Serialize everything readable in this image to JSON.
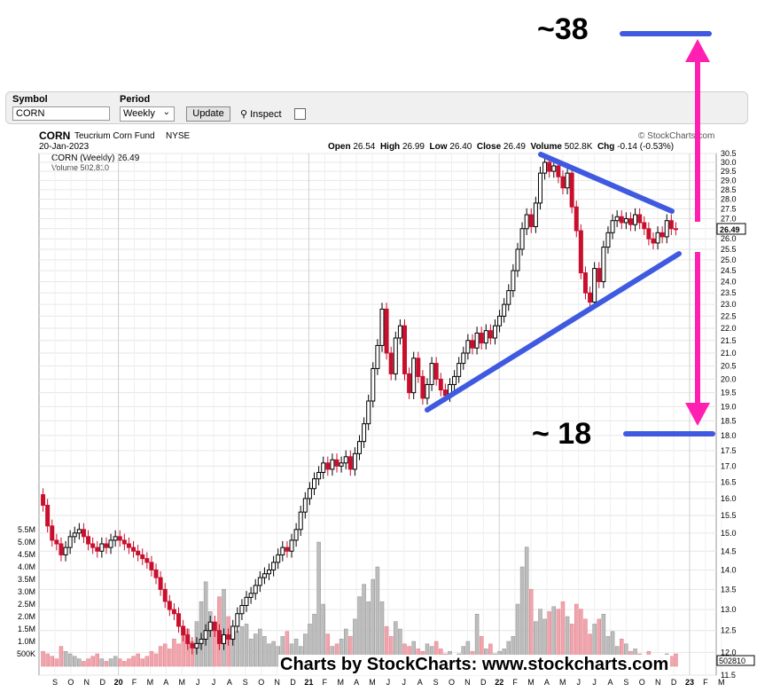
{
  "toolbar": {
    "symbol_label": "Symbol",
    "symbol_value": "CORN",
    "period_label": "Period",
    "period_value": "Weekly",
    "update_label": "Update",
    "inspect_label": "Inspect"
  },
  "header": {
    "ticker": "CORN",
    "fund_name": "Teucrium Corn Fund",
    "exchange": "NYSE",
    "brand": "© StockCharts.com",
    "date": "20-Jan-2023",
    "open_label": "Open",
    "open": "26.54",
    "high_label": "High",
    "high": "26.99",
    "low_label": "Low",
    "low": "26.40",
    "close_label": "Close",
    "close": "26.49",
    "volume_label": "Volume",
    "volume": "502.8K",
    "chg_label": "Chg",
    "chg": "-0.14 (-0.53%)",
    "legend_price": "CORN (Weekly) 26.49",
    "legend_volume": "Volume 502,810"
  },
  "annotations": {
    "upper_target": "~38",
    "lower_target": "~ 18",
    "watermark": "Charts by StockCharts:  www.stockcharts.com"
  },
  "chart_data": {
    "type": "candlestick",
    "title": "CORN Teucrium Corn Fund NYSE",
    "period": "weekly",
    "ylim": [
      11.5,
      30.5
    ],
    "yscale": "log",
    "y_ticks": [
      "11.5",
      "12.0",
      "12.5",
      "13.0",
      "13.5",
      "14.0",
      "14.5",
      "15.0",
      "15.5",
      "16.0",
      "16.5",
      "17.0",
      "17.5",
      "18.0",
      "18.5",
      "19.0",
      "19.5",
      "20.0",
      "20.5",
      "21.0",
      "21.5",
      "22.0",
      "22.5",
      "23.0",
      "23.5",
      "24.0",
      "24.5",
      "25.0",
      "25.5",
      "26.0",
      "26.5",
      "27.0",
      "27.5",
      "28.0",
      "28.5",
      "29.0",
      "29.5",
      "30.0",
      "30.5"
    ],
    "volume_ticks": [
      "500K",
      "1.0M",
      "1.5M",
      "2.0M",
      "2.5M",
      "3.0M",
      "3.5M",
      "4.0M",
      "4.5M",
      "5.0M",
      "5.5M"
    ],
    "x_labels": [
      "S",
      "O",
      "N",
      "D",
      "20",
      "F",
      "M",
      "A",
      "M",
      "J",
      "J",
      "A",
      "S",
      "O",
      "N",
      "D",
      "21",
      "F",
      "M",
      "A",
      "M",
      "J",
      "J",
      "A",
      "S",
      "O",
      "N",
      "D",
      "22",
      "F",
      "M",
      "A",
      "M",
      "J",
      "J",
      "A",
      "S",
      "O",
      "N",
      "D",
      "23",
      "F",
      "M"
    ],
    "last_price_label": "26.49",
    "last_volume_label": "502810",
    "close_series": [
      15.8,
      15.2,
      14.8,
      14.7,
      14.4,
      14.6,
      14.9,
      15.0,
      15.1,
      14.9,
      14.7,
      14.6,
      14.5,
      14.7,
      14.6,
      14.8,
      14.9,
      14.8,
      14.7,
      14.6,
      14.5,
      14.4,
      14.3,
      14.2,
      14.0,
      13.8,
      13.5,
      13.2,
      13.0,
      12.9,
      12.6,
      12.4,
      12.2,
      12.1,
      12.2,
      12.3,
      12.5,
      12.7,
      12.5,
      12.2,
      12.4,
      12.3,
      12.6,
      12.9,
      13.1,
      13.3,
      13.4,
      13.6,
      13.8,
      13.9,
      14.0,
      14.2,
      14.4,
      14.6,
      14.5,
      14.8,
      15.1,
      15.6,
      16.0,
      16.3,
      16.6,
      16.8,
      17.1,
      16.9,
      17.2,
      17.0,
      17.1,
      17.3,
      16.9,
      17.4,
      17.8,
      18.4,
      19.2,
      20.4,
      21.3,
      22.8,
      21.0,
      20.2,
      21.6,
      22.1,
      20.2,
      19.5,
      20.8,
      20.1,
      19.3,
      19.8,
      20.6,
      20.0,
      19.6,
      19.4,
      19.8,
      20.1,
      20.6,
      21.0,
      21.5,
      21.2,
      21.8,
      21.4,
      21.9,
      21.6,
      22.1,
      22.5,
      23.0,
      23.6,
      24.5,
      25.5,
      26.5,
      27.2,
      26.6,
      27.8,
      29.4,
      30.0,
      29.5,
      29.8,
      29.2,
      28.6,
      29.4,
      27.6,
      26.4,
      24.4,
      23.5,
      23.1,
      24.6,
      24.0,
      25.6,
      26.3,
      26.9,
      27.1,
      26.8,
      27.0,
      26.7,
      27.2,
      26.8,
      26.5,
      26.0,
      25.8,
      26.3,
      26.1,
      26.9,
      26.5,
      26.49
    ],
    "volume_series": [
      0.6,
      0.5,
      0.4,
      0.3,
      0.8,
      0.6,
      0.5,
      0.4,
      0.3,
      0.2,
      0.3,
      0.4,
      0.5,
      0.3,
      0.2,
      0.3,
      0.4,
      0.3,
      0.2,
      0.3,
      0.4,
      0.5,
      0.3,
      0.4,
      0.6,
      0.5,
      0.8,
      0.9,
      0.7,
      1.1,
      0.9,
      1.3,
      1.5,
      1.0,
      1.8,
      2.6,
      3.4,
      2.2,
      1.6,
      2.8,
      3.1,
      2.0,
      1.2,
      1.4,
      1.6,
      1.7,
      1.1,
      1.3,
      1.5,
      1.2,
      0.9,
      1.0,
      0.8,
      1.2,
      1.4,
      0.9,
      1.1,
      0.8,
      1.3,
      1.7,
      2.1,
      5.0,
      2.5,
      1.3,
      0.8,
      0.9,
      1.1,
      1.5,
      1.2,
      1.9,
      2.8,
      3.3,
      2.6,
      3.5,
      4.0,
      2.6,
      1.6,
      1.2,
      1.8,
      1.5,
      0.9,
      0.8,
      1.0,
      0.7,
      0.6,
      0.9,
      0.8,
      1.0,
      0.7,
      0.5,
      0.6,
      0.4,
      0.5,
      0.8,
      1.0,
      0.6,
      2.1,
      1.2,
      0.7,
      0.9,
      0.5,
      0.6,
      0.7,
      1.0,
      1.2,
      2.5,
      4.0,
      4.8,
      3.1,
      1.8,
      2.3,
      1.9,
      2.2,
      2.4,
      2.3,
      2.6,
      2.0,
      1.7,
      2.5,
      2.3,
      1.9,
      1.3,
      1.7,
      1.9,
      2.1,
      1.2,
      1.4,
      0.8,
      1.1,
      0.9,
      0.6,
      0.7,
      0.5,
      0.4,
      0.6,
      0.3,
      0.4,
      0.3,
      0.5,
      0.4,
      0.5
    ]
  }
}
